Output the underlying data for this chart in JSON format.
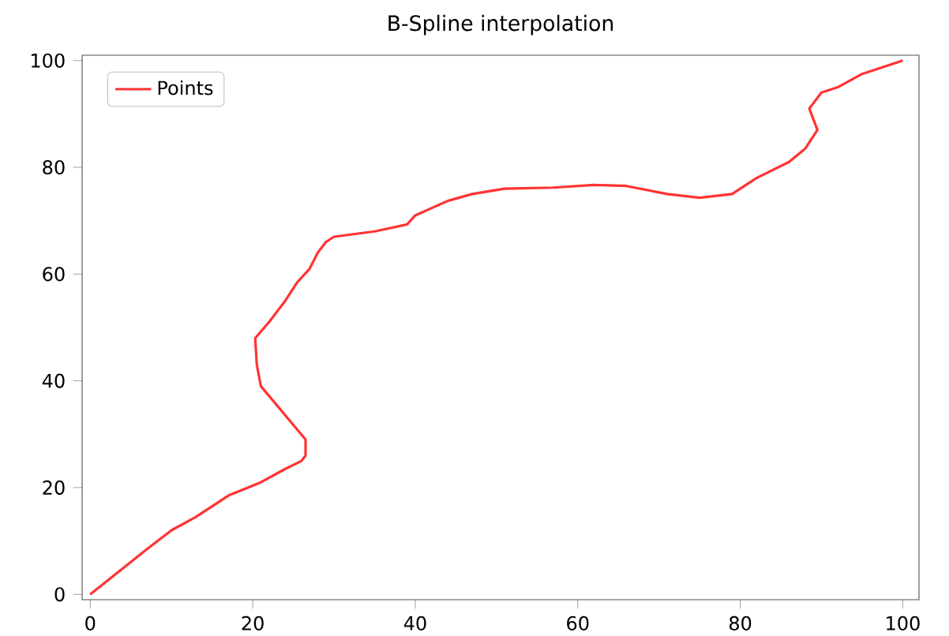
{
  "chart_data": {
    "type": "line",
    "title": "B-Spline interpolation",
    "xlim": [
      -1,
      102
    ],
    "ylim": [
      -1,
      101
    ],
    "xticks": [
      0,
      20,
      40,
      60,
      80,
      100
    ],
    "yticks": [
      0,
      20,
      40,
      60,
      80,
      100
    ],
    "legend": "top left",
    "grid": false,
    "marker": "none",
    "line_style": "solid",
    "series": [
      {
        "name": "Points",
        "color": "#ff3333",
        "x": [
          0,
          7,
          10,
          13,
          17,
          21,
          24,
          26,
          26.5,
          26.5,
          21,
          20.5,
          20.3,
          22,
          24,
          25.5,
          27,
          28,
          29,
          30,
          35,
          39,
          40,
          44,
          47,
          51,
          57,
          62,
          66,
          71,
          75,
          79,
          82,
          86,
          88,
          89.5,
          88.5,
          90,
          92,
          95,
          100
        ],
        "values": [
          0,
          8.5,
          12,
          14.5,
          18.5,
          21,
          23.5,
          25,
          26,
          29,
          39,
          43,
          48,
          51,
          55,
          58.5,
          61,
          64,
          66,
          67,
          68,
          69.3,
          71,
          73.7,
          75,
          76,
          76.2,
          76.7,
          76.5,
          75,
          74.3,
          75,
          78,
          81,
          83.5,
          87,
          91,
          94,
          95,
          97.5,
          100
        ]
      }
    ]
  }
}
